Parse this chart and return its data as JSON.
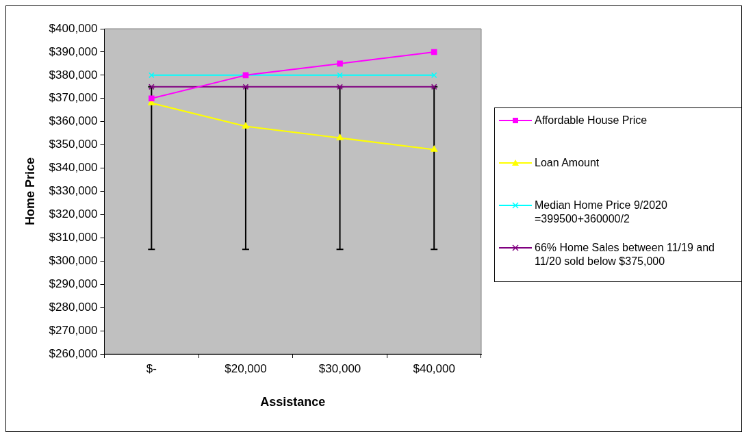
{
  "chart_data": {
    "type": "line",
    "xlabel": "Assistance",
    "ylabel": "Home Price",
    "categories": [
      "$-",
      "$20,000",
      "$30,000",
      "$40,000"
    ],
    "series": [
      {
        "name": "Affordable House Price",
        "color": "#ff00ff",
        "marker": "square",
        "values": [
          370000,
          380000,
          385000,
          390000
        ]
      },
      {
        "name": "Loan Amount",
        "color": "#ffff00",
        "marker": "triangle",
        "values": [
          368000,
          358000,
          353000,
          348000
        ]
      },
      {
        "name": "Median Home Price 9/2020 =399500+360000/2",
        "color": "#00ffff",
        "marker": "cross",
        "values": [
          380000,
          380000,
          380000,
          380000
        ]
      },
      {
        "name": "66% Home Sales between 11/19 and 11/20 sold below $375,000",
        "color": "#800080",
        "marker": "cross",
        "values": [
          375000,
          375000,
          375000,
          375000
        ],
        "errors": [
          [
            305000,
            375000
          ],
          [
            305000,
            375000
          ],
          [
            305000,
            375000
          ],
          [
            305000,
            375000
          ]
        ]
      }
    ],
    "ylim": [
      260000,
      400000
    ],
    "yticks": [
      {
        "value": 260000,
        "label": "$260,000"
      },
      {
        "value": 270000,
        "label": "$270,000"
      },
      {
        "value": 280000,
        "label": "$280,000"
      },
      {
        "value": 290000,
        "label": "$290,000"
      },
      {
        "value": 300000,
        "label": "$300,000"
      },
      {
        "value": 310000,
        "label": "$310,000"
      },
      {
        "value": 320000,
        "label": "$320,000"
      },
      {
        "value": 330000,
        "label": "$330,000"
      },
      {
        "value": 340000,
        "label": "$340,000"
      },
      {
        "value": 350000,
        "label": "$350,000"
      },
      {
        "value": 360000,
        "label": "$360,000"
      },
      {
        "value": 370000,
        "label": "$370,000"
      },
      {
        "value": 380000,
        "label": "$380,000"
      },
      {
        "value": 390000,
        "label": "$390,000"
      },
      {
        "value": 400000,
        "label": "$400,000"
      }
    ],
    "grid": false,
    "legend": "right"
  }
}
